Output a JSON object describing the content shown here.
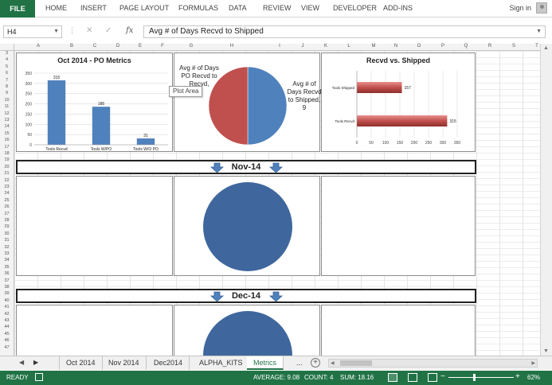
{
  "ribbon": {
    "file_label": "FILE",
    "tabs": [
      "HOME",
      "INSERT",
      "PAGE LAYOUT",
      "FORMULAS",
      "DATA",
      "REVIEW",
      "VIEW",
      "DEVELOPER",
      "ADD-INS"
    ],
    "signin_label": "Sign in"
  },
  "formula_bar": {
    "name_box": "H4",
    "formula": "Avg # of Days Recvd to Shipped"
  },
  "columns": [
    "A",
    "B",
    "C",
    "D",
    "E",
    "F",
    "G",
    "H",
    "I",
    "J",
    "K",
    "L",
    "M",
    "N",
    "O",
    "P",
    "Q",
    "R",
    "S",
    "T"
  ],
  "row_numbers": [
    3,
    4,
    5,
    6,
    7,
    8,
    9,
    10,
    11,
    12,
    13,
    14,
    15,
    16,
    17,
    18,
    19,
    20,
    21,
    22,
    23,
    24,
    25,
    26,
    27,
    28,
    29,
    30,
    31,
    32,
    33,
    34,
    35,
    36,
    37,
    38,
    39,
    40,
    41,
    42,
    43,
    44,
    45,
    46,
    47
  ],
  "charts": {
    "metrics": {
      "title": "Oct 2014 - PO Metrics",
      "y_ticks": [
        "0",
        "50",
        "100",
        "150",
        "200",
        "250",
        "300",
        "350"
      ],
      "chart_data": {
        "type": "bar",
        "title": "Oct 2014 - PO Metrics",
        "categories": [
          "Tools Recvd",
          "Tools W/PO",
          "Tools W/O PO"
        ],
        "values": [
          315,
          186,
          31
        ],
        "ylim": [
          0,
          350
        ],
        "grid": true,
        "color": "#4f81bd"
      }
    },
    "avg_days_pie": {
      "chart_data": {
        "type": "pie",
        "slices": [
          {
            "label": "Avg # of Days PO Recvd to Recvd",
            "value": 9,
            "color": "#c0504d"
          },
          {
            "label": "Avg # of Days Recvd to Shipped",
            "value": 9,
            "color": "#4f81bd"
          }
        ]
      },
      "left_label": "Avg # of Days PO Recvd to Recvd,",
      "left_value": "9",
      "right_label": "Avg # of Days Recvd to Shipped,",
      "right_value": "9",
      "tooltip": "Plot Area"
    },
    "recvd_shipped": {
      "title": "Recvd vs. Shipped",
      "x_ticks": [
        "0",
        "50",
        "100",
        "150",
        "200",
        "250",
        "300",
        "350"
      ],
      "chart_data": {
        "type": "bar",
        "orientation": "horizontal",
        "title": "Recvd vs. Shipped",
        "categories": [
          "Tools Shipped",
          "Tools Recvd"
        ],
        "values": [
          157,
          315
        ],
        "xlim": [
          0,
          350
        ],
        "grid": true,
        "color": "#c0504d"
      }
    }
  },
  "sections": [
    {
      "label": "Nov-14",
      "pie_color": "#3f679e"
    },
    {
      "label": "Dec-14",
      "pie_color": "#3f679e"
    }
  ],
  "sheet_tabs": {
    "tabs": [
      "Oct 2014",
      "Nov 2014",
      "Dec2014",
      "ALPHA_KITS",
      "Metrics"
    ],
    "active": "Metrics",
    "more": "..."
  },
  "status_bar": {
    "ready": "READY",
    "average": "AVERAGE: 9.08",
    "count": "COUNT: 4",
    "sum": "SUM: 18.16",
    "zoom": "62%"
  },
  "colors": {
    "accent": "#217346",
    "bar_blue": "#4f81bd",
    "bar_red": "#c0504d",
    "arrow_blue": "#4f81bd"
  }
}
